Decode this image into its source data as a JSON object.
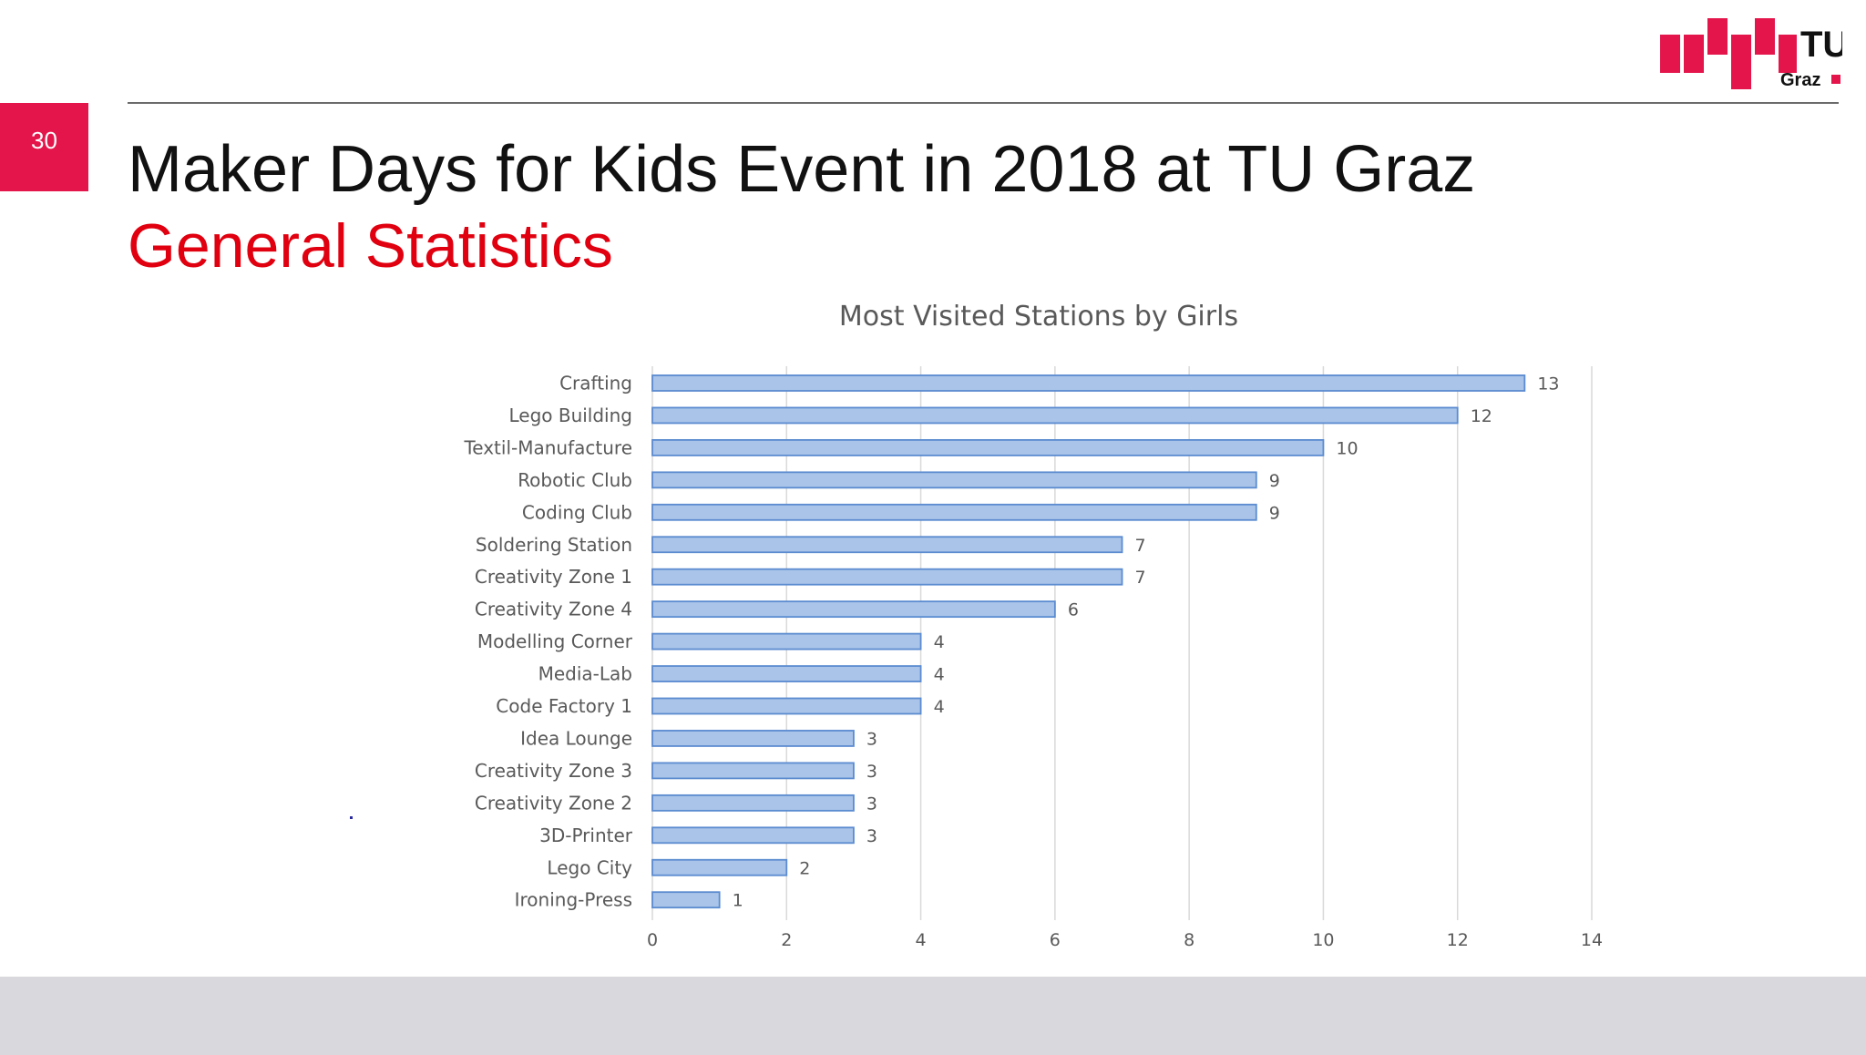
{
  "slide": {
    "number": "30",
    "title": "Maker Days for Kids Event in 2018 at TU Graz",
    "subtitle": "General Statistics",
    "logo": {
      "line1": "TU",
      "line2": "Graz",
      "color": "#e4154b"
    }
  },
  "colors": {
    "accent": "#e4154b",
    "subtitle": "#e0000f",
    "bar_fill": "#a9c4e8",
    "bar_stroke": "#5b8bd0"
  },
  "chart_data": {
    "type": "bar",
    "orientation": "horizontal",
    "title": "Most Visited Stations by Girls",
    "xlabel": "",
    "ylabel": "",
    "categories": [
      "Crafting",
      "Lego Building",
      "Textil-Manufacture",
      "Robotic Club",
      "Coding Club",
      "Soldering Station",
      "Creativity Zone 1",
      "Creativity Zone 4",
      "Modelling Corner",
      "Media-Lab",
      "Code Factory 1",
      "Idea Lounge",
      "Creativity Zone 3",
      "Creativity Zone 2",
      "3D-Printer",
      "Lego City",
      "Ironing-Press"
    ],
    "values": [
      13,
      12,
      10,
      9,
      9,
      7,
      7,
      6,
      4,
      4,
      4,
      3,
      3,
      3,
      3,
      2,
      1
    ],
    "xlim": [
      0,
      14
    ],
    "xticks": [
      0,
      2,
      4,
      6,
      8,
      10,
      12,
      14
    ],
    "grid": true,
    "data_labels": true,
    "legend": "none"
  }
}
